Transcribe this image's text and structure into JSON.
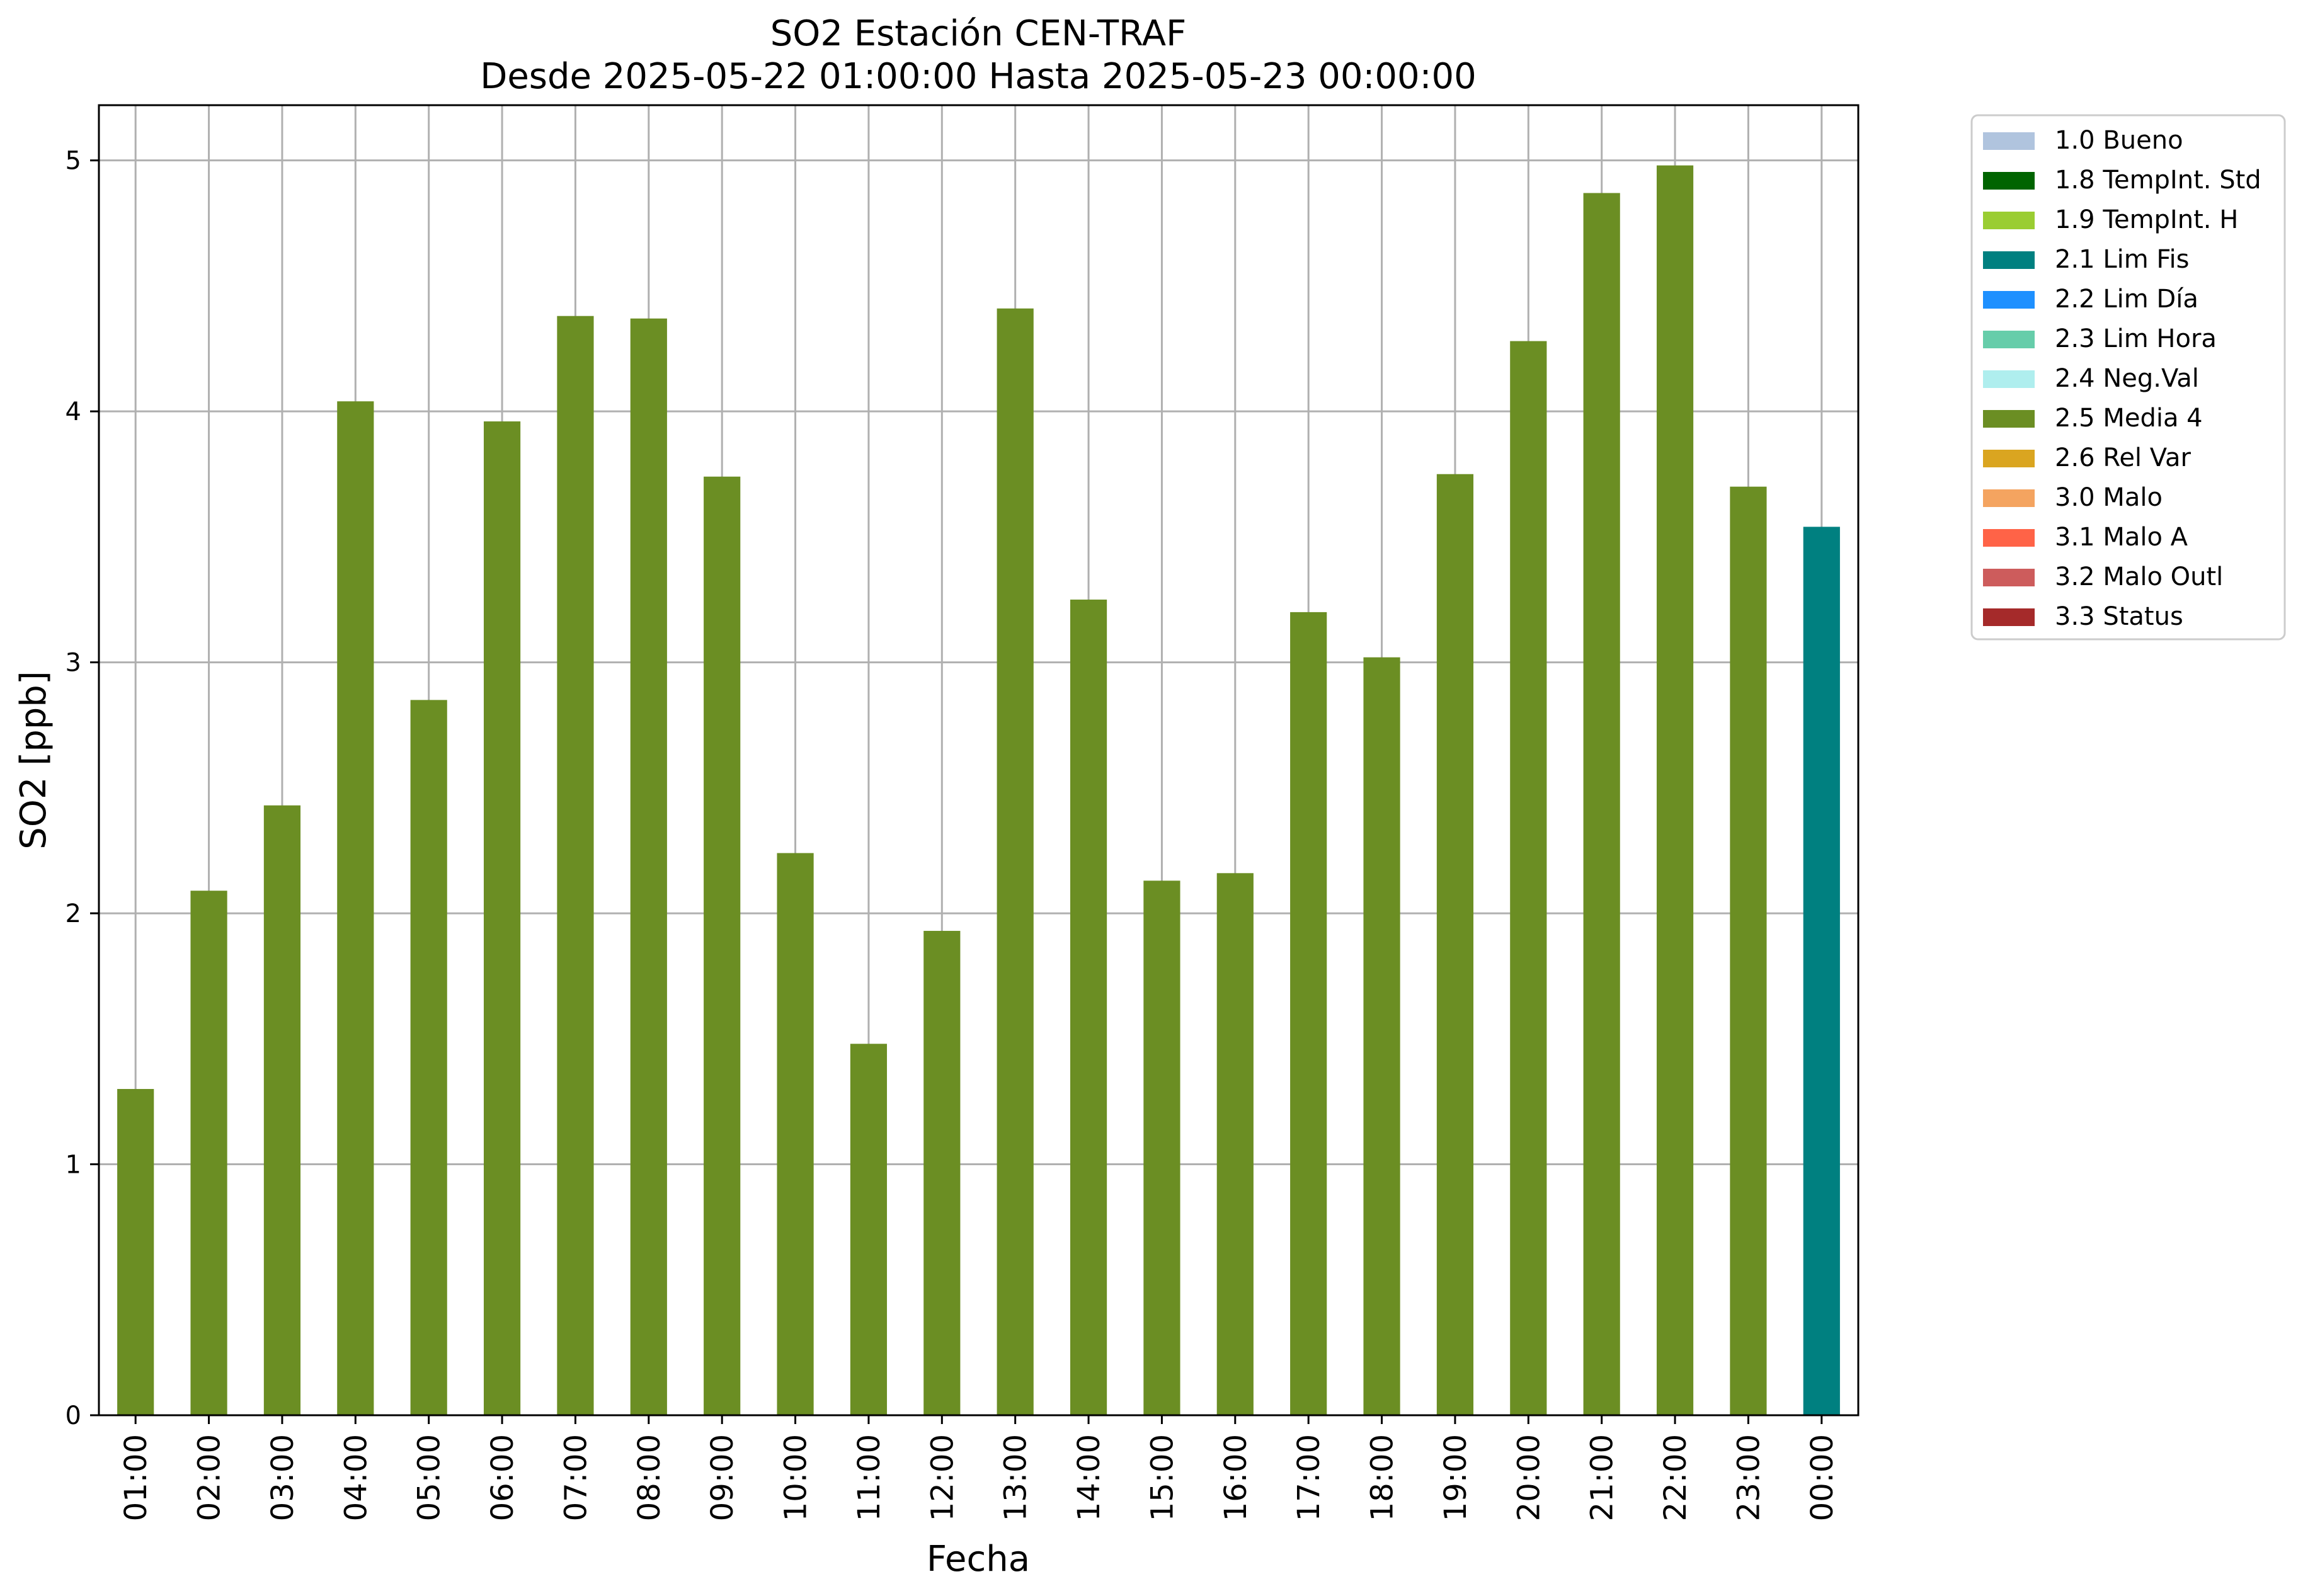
{
  "chart_data": {
    "type": "bar",
    "title": "SO2 Estación CEN-TRAF",
    "subtitle": "Desde 2025-05-22 01:00:00 Hasta 2025-05-23 00:00:00",
    "xlabel": "Fecha",
    "ylabel": "SO2 [ppb]",
    "ylim": [
      0,
      5.22
    ],
    "yticks": [
      "0",
      "1",
      "2",
      "3",
      "4",
      "5"
    ],
    "grid": true,
    "legend_position": "outside-top-right",
    "categories": [
      "01:00",
      "02:00",
      "03:00",
      "04:00",
      "05:00",
      "06:00",
      "07:00",
      "08:00",
      "09:00",
      "10:00",
      "11:00",
      "12:00",
      "13:00",
      "14:00",
      "15:00",
      "16:00",
      "17:00",
      "18:00",
      "19:00",
      "20:00",
      "21:00",
      "22:00",
      "23:00",
      "00:00"
    ],
    "values": [
      1.3,
      2.09,
      2.43,
      4.04,
      2.85,
      3.96,
      4.38,
      4.37,
      3.74,
      2.24,
      1.48,
      1.93,
      4.41,
      3.25,
      2.13,
      2.16,
      3.2,
      3.02,
      3.75,
      4.28,
      4.87,
      4.98,
      3.7,
      3.54
    ],
    "flags": [
      "2.5 Media 4",
      "2.5 Media 4",
      "2.5 Media 4",
      "2.5 Media 4",
      "2.5 Media 4",
      "2.5 Media 4",
      "2.5 Media 4",
      "2.5 Media 4",
      "2.5 Media 4",
      "2.5 Media 4",
      "2.5 Media 4",
      "2.5 Media 4",
      "2.5 Media 4",
      "2.5 Media 4",
      "2.5 Media 4",
      "2.5 Media 4",
      "2.5 Media 4",
      "2.5 Media 4",
      "2.5 Media 4",
      "2.5 Media 4",
      "2.5 Media 4",
      "2.5 Media 4",
      "2.5 Media 4",
      "2.1 Lim Fis"
    ],
    "legend": [
      {
        "label": "1.0 Bueno",
        "color": "#b0c4de"
      },
      {
        "label": "1.8 TempInt. Std",
        "color": "#006400"
      },
      {
        "label": "1.9 TempInt. H",
        "color": "#9acd32"
      },
      {
        "label": "2.1 Lim Fis",
        "color": "#008080"
      },
      {
        "label": "2.2 Lim Día",
        "color": "#1e90ff"
      },
      {
        "label": "2.3 Lim Hora",
        "color": "#66cdaa"
      },
      {
        "label": "2.4 Neg.Val",
        "color": "#afeeee"
      },
      {
        "label": "2.5 Media 4",
        "color": "#6b8e23"
      },
      {
        "label": "2.6 Rel Var",
        "color": "#daa520"
      },
      {
        "label": "3.0 Malo",
        "color": "#f4a460"
      },
      {
        "label": "3.1 Malo A",
        "color": "#ff6347"
      },
      {
        "label": "3.2 Malo Outl",
        "color": "#cd5c5c"
      },
      {
        "label": "3.3 Status",
        "color": "#a52a2a"
      }
    ]
  }
}
